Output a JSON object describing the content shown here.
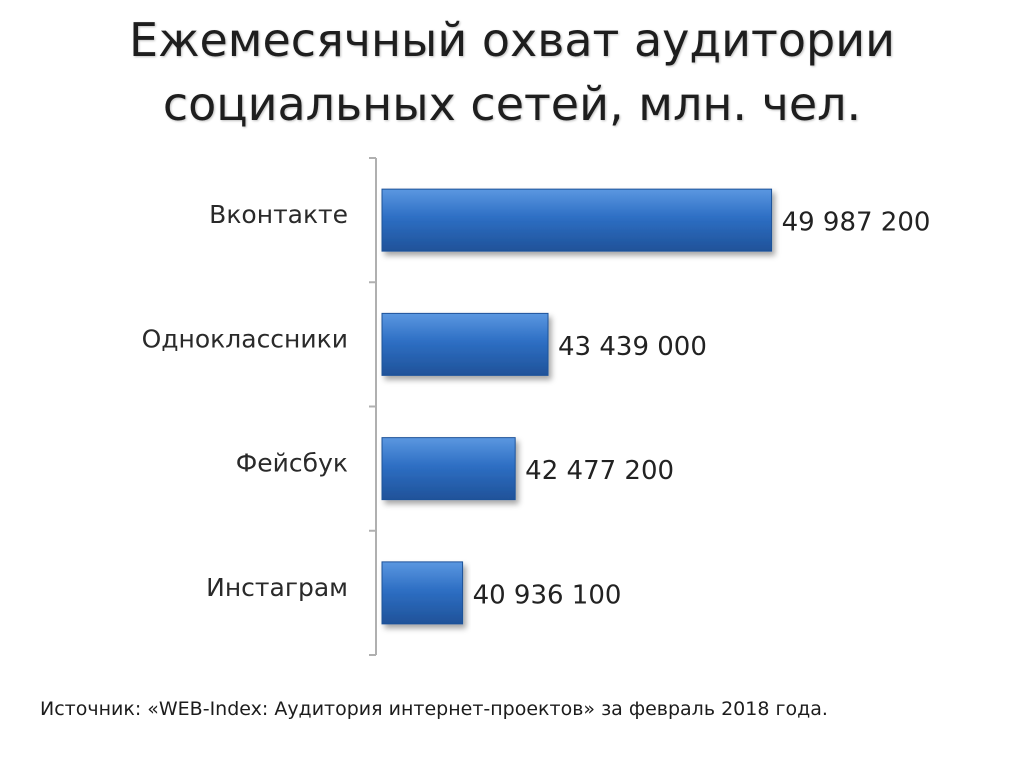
{
  "chart_data": {
    "type": "bar",
    "orientation": "horizontal",
    "title": "Ежемесячный охват аудитории социальных сетей, млн. чел.",
    "title_lines": [
      "Ежемесячный охват аудитории",
      "социальных сетей, млн. чел."
    ],
    "categories": [
      "Вконтакте",
      "Одноклассники",
      "Фейсбук",
      "Инстаграм"
    ],
    "values": [
      49987200,
      43439000,
      42477200,
      40936100
    ],
    "value_labels": [
      "49 987 200",
      "43 439 000",
      "42 477 200",
      "40 936 100"
    ],
    "xlim": [
      38400000,
      50000000
    ],
    "xlabel": "",
    "ylabel": "",
    "grid": false,
    "legend": "none",
    "bar_color": "#2e6fc4",
    "bar_color_light": "#5b97e0",
    "bar_color_dark": "#1f5299",
    "axis_color": "#b0b0b0"
  },
  "source": "Источник: «WEB-Index: Аудитория интернет-проектов» за февраль 2018 года."
}
